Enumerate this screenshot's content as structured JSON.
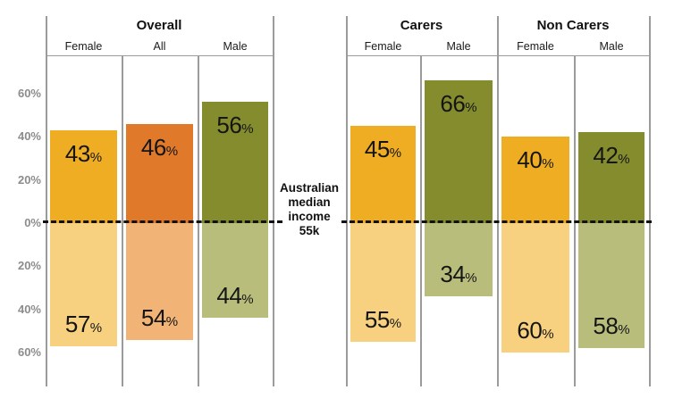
{
  "annotation": {
    "text": "Australian\nmedian\nincome\n55k"
  },
  "y_axis": {
    "ticks": [
      {
        "label": "60%",
        "value": 60
      },
      {
        "label": "40%",
        "value": 40
      },
      {
        "label": "20%",
        "value": 20
      },
      {
        "label": "0%",
        "value": 0
      },
      {
        "label": "20%",
        "value": -20
      },
      {
        "label": "40%",
        "value": -40
      },
      {
        "label": "60%",
        "value": -60
      }
    ]
  },
  "colors": {
    "palettes": {
      "female": {
        "above": "#EFAD24",
        "below": "#F8D180"
      },
      "all": {
        "above": "#E1792B",
        "below": "#F2B476"
      },
      "male": {
        "above": "#848C2E",
        "below": "#B9BD7B"
      }
    },
    "axis_label": "#8C8C8C",
    "panel_line": "#9B9B9B",
    "baseline_dash": "#111111",
    "bar_label_text": "#151515"
  },
  "chart_data": {
    "type": "bar",
    "title": "",
    "ylabel": "",
    "xlabel": "",
    "ylim": [
      -78,
      78
    ],
    "grid": false,
    "baseline": {
      "value": 0,
      "label": "Australian median income 55k",
      "style": "dashed"
    },
    "note": "Diverging bars: share of group above (dark) vs below (light) Australian median income 55k",
    "groups": [
      {
        "title": "Overall",
        "columns": [
          {
            "label": "Female",
            "palette": "female",
            "above_pct": 43,
            "below_pct": 57
          },
          {
            "label": "All",
            "palette": "all",
            "above_pct": 46,
            "below_pct": 54
          },
          {
            "label": "Male",
            "palette": "male",
            "above_pct": 56,
            "below_pct": 44
          }
        ]
      },
      {
        "title": "Carers",
        "columns": [
          {
            "label": "Female",
            "palette": "female",
            "above_pct": 45,
            "below_pct": 55
          },
          {
            "label": "Male",
            "palette": "male",
            "above_pct": 66,
            "below_pct": 34
          }
        ]
      },
      {
        "title": "Non Carers",
        "columns": [
          {
            "label": "Female",
            "palette": "female",
            "above_pct": 40,
            "below_pct": 60
          },
          {
            "label": "Male",
            "palette": "male",
            "above_pct": 42,
            "below_pct": 58
          }
        ]
      }
    ]
  }
}
